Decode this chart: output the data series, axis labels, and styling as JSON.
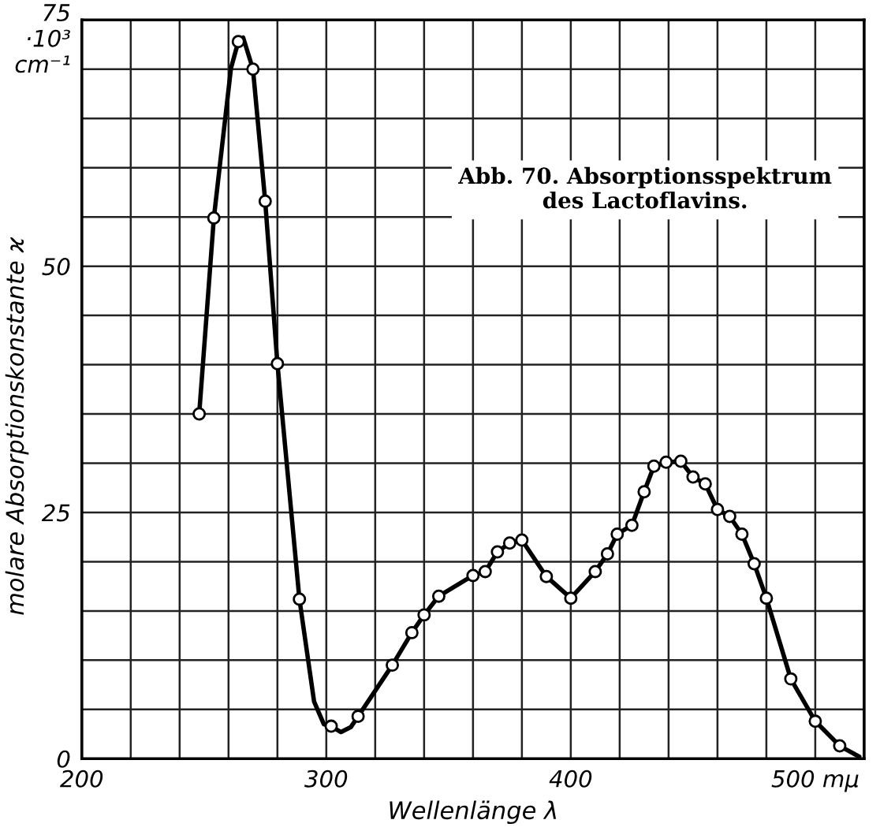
{
  "chart_data": {
    "type": "line",
    "title": "Abb. 70. Absorptionsspektrum\ndes Lactoflavins.",
    "xlabel": "Wellenlänge λ",
    "ylabel": "molare Absorptionskonstante ϰ",
    "xlim": [
      200,
      520
    ],
    "ylim": [
      0,
      75
    ],
    "xticks": [
      200,
      {
        "value": 220,
        "label": null
      },
      {
        "value": 240,
        "label": null
      },
      {
        "value": 260,
        "label": null
      },
      {
        "value": 280,
        "label": null
      },
      300,
      {
        "value": 320,
        "label": null
      },
      {
        "value": 340,
        "label": null
      },
      {
        "value": 360,
        "label": null
      },
      {
        "value": 380,
        "label": null
      },
      400,
      {
        "value": 420,
        "label": null
      },
      {
        "value": 440,
        "label": null
      },
      {
        "value": 460,
        "label": null
      },
      {
        "value": 480,
        "label": null
      },
      {
        "value": 500,
        "label": "500 mμ"
      },
      {
        "value": 520,
        "label": null
      }
    ],
    "yticks": [
      0,
      {
        "value": 5,
        "label": null
      },
      {
        "value": 10,
        "label": null
      },
      {
        "value": 15,
        "label": null
      },
      {
        "value": 20,
        "label": null
      },
      25,
      {
        "value": 30,
        "label": null
      },
      {
        "value": 35,
        "label": null
      },
      {
        "value": 40,
        "label": null
      },
      {
        "value": 45,
        "label": null
      },
      50,
      {
        "value": 55,
        "label": null
      },
      {
        "value": 60,
        "label": null
      },
      {
        "value": 65,
        "label": null
      },
      {
        "value": 70,
        "label": null
      },
      {
        "value": 75,
        "label": "75\n·10³\ncm⁻¹"
      }
    ],
    "grid": true,
    "series": [
      {
        "color": "#000000",
        "line_style": "solid",
        "x": [
          248,
          254,
          261,
          264,
          266,
          270,
          275,
          280,
          289,
          295,
          299,
          302,
          306,
          310,
          313,
          327,
          335,
          340,
          346,
          360,
          365,
          370,
          375,
          380,
          390,
          400,
          410,
          415,
          419,
          425,
          430,
          434,
          439,
          445,
          450,
          455,
          460,
          465,
          470,
          475,
          480,
          490,
          500,
          510,
          518
        ],
        "values": [
          35.0,
          54.9,
          70.1,
          72.8,
          73.2,
          70.0,
          56.6,
          40.1,
          16.2,
          5.8,
          3.5,
          3.3,
          2.7,
          3.2,
          4.3,
          9.5,
          12.8,
          14.6,
          16.5,
          18.6,
          19.0,
          21.0,
          21.9,
          22.2,
          18.5,
          16.3,
          19.0,
          20.8,
          22.8,
          23.7,
          27.1,
          29.7,
          30.1,
          30.2,
          28.6,
          27.9,
          25.3,
          24.6,
          22.8,
          19.8,
          16.3,
          8.1,
          3.8,
          1.3,
          0.2
        ]
      },
      {
        "type": "scatter",
        "color": "#000000",
        "marker": "circle",
        "x": [
          248,
          254,
          264,
          270,
          275,
          280,
          289,
          302,
          313,
          327,
          335,
          340,
          346,
          360,
          365,
          370,
          375,
          380,
          390,
          400,
          410,
          415,
          419,
          425,
          430,
          434,
          439,
          445,
          450,
          455,
          460,
          465,
          470,
          475,
          480,
          490,
          500,
          510
        ],
        "values": [
          35.0,
          54.9,
          72.8,
          70.0,
          56.6,
          40.1,
          16.2,
          3.3,
          4.3,
          9.5,
          12.8,
          14.6,
          16.5,
          18.6,
          19.0,
          21.0,
          21.9,
          22.2,
          18.5,
          16.3,
          19.0,
          20.8,
          22.8,
          23.7,
          27.1,
          29.7,
          30.1,
          30.2,
          28.6,
          27.9,
          25.3,
          24.6,
          22.8,
          19.8,
          16.3,
          8.1,
          3.8,
          1.3
        ]
      }
    ]
  }
}
